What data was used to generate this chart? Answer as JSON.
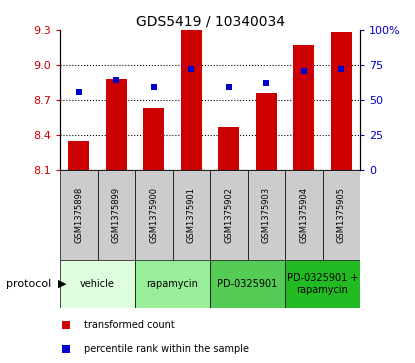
{
  "title": "GDS5419 / 10340034",
  "samples": [
    "GSM1375898",
    "GSM1375899",
    "GSM1375900",
    "GSM1375901",
    "GSM1375902",
    "GSM1375903",
    "GSM1375904",
    "GSM1375905"
  ],
  "bar_values": [
    8.35,
    8.88,
    8.63,
    9.3,
    8.47,
    8.76,
    9.17,
    9.28
  ],
  "percentile_values": [
    8.77,
    8.87,
    8.81,
    8.97,
    8.81,
    8.85,
    8.95,
    8.97
  ],
  "ylim_left": [
    8.1,
    9.3
  ],
  "ylim_right": [
    0,
    100
  ],
  "yticks_left": [
    8.1,
    8.4,
    8.7,
    9.0,
    9.3
  ],
  "yticks_right": [
    0,
    25,
    50,
    75,
    100
  ],
  "bar_color": "#cc0000",
  "percentile_color": "#0000cc",
  "protocols": [
    {
      "label": "vehicle",
      "start": 0,
      "end": 2,
      "color": "#ddffdd"
    },
    {
      "label": "rapamycin",
      "start": 2,
      "end": 4,
      "color": "#99ee99"
    },
    {
      "label": "PD-0325901",
      "start": 4,
      "end": 6,
      "color": "#55cc55"
    },
    {
      "label": "PD-0325901 +\nrapamycin",
      "start": 6,
      "end": 8,
      "color": "#22bb22"
    }
  ],
  "protocol_label": "protocol",
  "legend_bar_label": "transformed count",
  "legend_pct_label": "percentile rank within the sample",
  "bar_width": 0.55
}
